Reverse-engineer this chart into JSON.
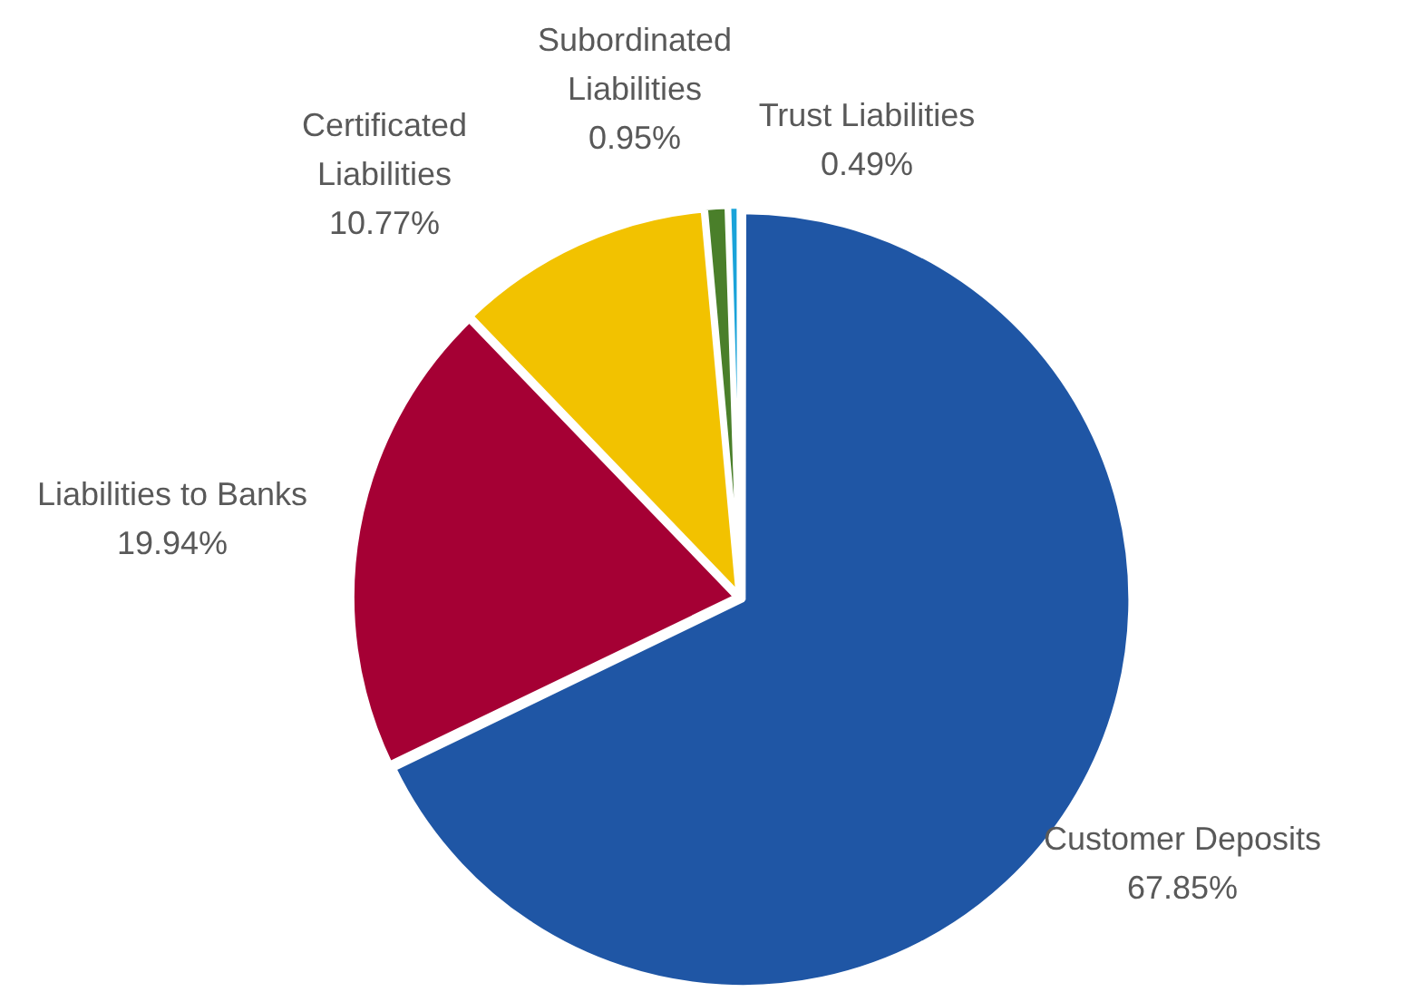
{
  "chart_data": {
    "type": "pie",
    "categories": [
      "Customer Deposits",
      "Liabilities to Banks",
      "Certificated Liabilities",
      "Subordinated Liabilities",
      "Trust Liabilities"
    ],
    "values": [
      67.85,
      19.94,
      10.77,
      0.95,
      0.49
    ],
    "value_labels": [
      "67.85%",
      "19.94%",
      "10.77%",
      "0.95%",
      "0.49%"
    ],
    "colors": [
      "#1f56a5",
      "#a50034",
      "#f2c200",
      "#4a7f2a",
      "#1aa3d9"
    ]
  }
}
